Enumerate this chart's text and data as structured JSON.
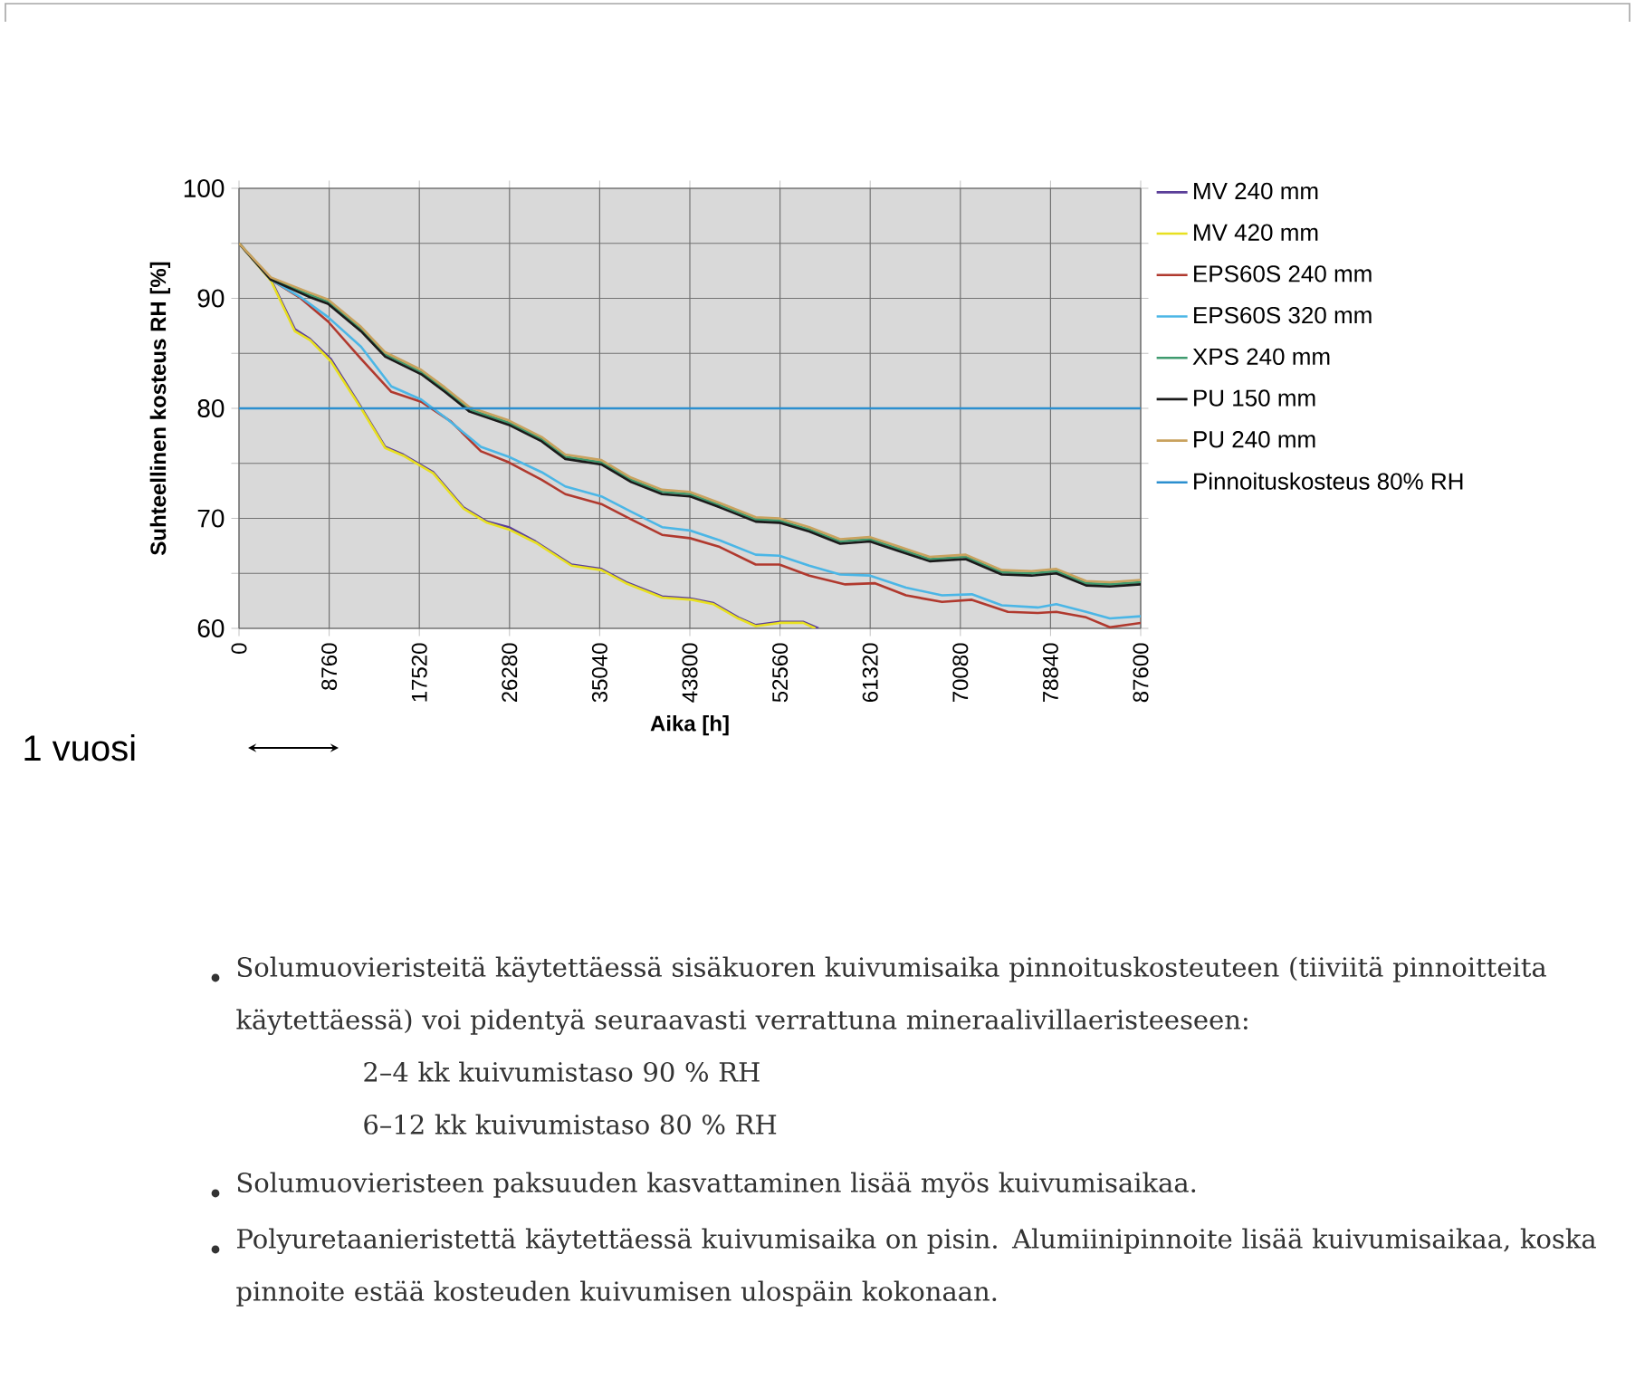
{
  "chart_data": {
    "type": "line",
    "xlabel": "Aika [h]",
    "ylabel": "Suhteellinen kosteus RH [%]",
    "xlim": [
      0,
      87600
    ],
    "ylim": [
      60,
      100
    ],
    "xticks": [
      0,
      8760,
      17520,
      26280,
      35040,
      43800,
      52560,
      61320,
      70080,
      78840,
      87600
    ],
    "yticks": [
      60,
      {
        "value": 65,
        "label": null
      },
      70,
      {
        "value": 75,
        "label": null
      },
      80,
      {
        "value": 85,
        "label": null
      },
      90,
      {
        "value": 95,
        "label": null
      },
      100
    ],
    "grid": true,
    "legend": "right",
    "line_style": "solid",
    "marker": "none",
    "series": [
      {
        "name": "MV 240 mm",
        "color": "#5b3f99",
        "x": [
          0,
          3100,
          5430,
          6900,
          8900,
          11860,
          14200,
          15950,
          18860,
          21800,
          24100,
          26200,
          28800,
          32300,
          35200,
          37600,
          41100,
          44000,
          46100,
          48500,
          50200,
          52550,
          54800,
          56300
        ],
        "values": [
          95,
          91.7,
          87.2,
          86.3,
          84.5,
          80.1,
          76.5,
          75.8,
          74.2,
          71.0,
          69.7,
          69.2,
          67.9,
          65.8,
          65.4,
          64.2,
          62.9,
          62.7,
          62.3,
          61.0,
          60.3,
          60.6,
          60.6,
          60
        ]
      },
      {
        "name": "MV 420 mm",
        "color": "#e8e020",
        "x": [
          0,
          3100,
          5430,
          6900,
          8900,
          11860,
          14200,
          15950,
          18860,
          21800,
          24100,
          26200,
          28800,
          32300,
          35200,
          37600,
          41100,
          44000,
          46100,
          48500,
          50200,
          52550,
          54800,
          56000
        ],
        "values": [
          95,
          91.6,
          87.0,
          86.2,
          84.3,
          80.0,
          76.4,
          75.7,
          74.1,
          70.9,
          69.6,
          69.0,
          67.8,
          65.7,
          65.3,
          64.1,
          62.8,
          62.6,
          62.2,
          60.9,
          60.2,
          60.5,
          60.5,
          60
        ]
      },
      {
        "name": "EPS60S 240 mm",
        "color": "#b0392e",
        "x": [
          0,
          3100,
          6000,
          8640,
          11860,
          14800,
          17700,
          20600,
          23500,
          26200,
          29400,
          31700,
          35200,
          38100,
          41100,
          43800,
          46700,
          50200,
          52500,
          55400,
          58900,
          61800,
          64800,
          68300,
          71200,
          74700,
          77600,
          79400,
          82300,
          84600,
          87600
        ],
        "values": [
          95,
          91.7,
          90.0,
          87.9,
          84.5,
          81.5,
          80.6,
          78.8,
          76.1,
          75.1,
          73.5,
          72.2,
          71.3,
          69.9,
          68.5,
          68.2,
          67.4,
          65.8,
          65.8,
          64.8,
          64.0,
          64.1,
          63.0,
          62.4,
          62.6,
          61.5,
          61.4,
          61.5,
          61.0,
          60.1,
          60.5
        ]
      },
      {
        "name": "EPS60S 320 mm",
        "color": "#4bb6e6",
        "x": [
          0,
          3100,
          6000,
          8640,
          11860,
          14800,
          17700,
          20000,
          23500,
          26200,
          29400,
          31700,
          35200,
          38100,
          41100,
          43800,
          46700,
          50200,
          52500,
          55400,
          58400,
          61300,
          64800,
          68300,
          71200,
          74100,
          77600,
          79400,
          82300,
          84600,
          87600
        ],
        "values": [
          95,
          91.7,
          90.1,
          88.3,
          85.6,
          82.0,
          80.8,
          79.2,
          76.5,
          75.6,
          74.2,
          72.9,
          72.0,
          70.6,
          69.2,
          68.9,
          68.0,
          66.7,
          66.6,
          65.7,
          64.9,
          64.8,
          63.7,
          63.0,
          63.1,
          62.1,
          61.9,
          62.2,
          61.5,
          60.9,
          61.1
        ]
      },
      {
        "name": "XPS 240 mm",
        "color": "#3f9a6e",
        "x": [
          0,
          3100,
          6900,
          8640,
          11860,
          14200,
          17700,
          20000,
          22400,
          26200,
          29400,
          31700,
          35200,
          38100,
          41100,
          43800,
          46700,
          50200,
          52500,
          55400,
          58400,
          61300,
          64200,
          67100,
          70600,
          74100,
          77000,
          79400,
          82300,
          84600,
          87600
        ],
        "values": [
          95,
          91.8,
          90.3,
          89.7,
          87.2,
          84.9,
          83.3,
          81.7,
          79.9,
          78.7,
          77.2,
          75.6,
          75.1,
          73.5,
          72.4,
          72.2,
          71.2,
          69.9,
          69.8,
          69.0,
          67.9,
          68.1,
          67.2,
          66.3,
          66.5,
          65.1,
          65.0,
          65.2,
          64.1,
          64.0,
          64.2
        ]
      },
      {
        "name": "PU 150 mm",
        "color": "#1a1a1a",
        "x": [
          0,
          3100,
          6900,
          8640,
          11860,
          14200,
          17700,
          20000,
          22400,
          26200,
          29400,
          31700,
          35200,
          38100,
          41100,
          43800,
          46700,
          50200,
          52500,
          55400,
          58400,
          61300,
          64200,
          67100,
          70600,
          74100,
          77000,
          79400,
          82300,
          84600,
          87600
        ],
        "values": [
          95,
          91.7,
          90.1,
          89.5,
          87.0,
          84.7,
          83.1,
          81.5,
          79.7,
          78.5,
          77.0,
          75.4,
          74.9,
          73.3,
          72.2,
          72.0,
          71.0,
          69.7,
          69.6,
          68.8,
          67.7,
          67.9,
          67.0,
          66.1,
          66.3,
          64.9,
          64.8,
          65.0,
          63.9,
          63.8,
          64.0
        ]
      },
      {
        "name": "PU 240 mm",
        "color": "#c9a25e",
        "x": [
          0,
          3100,
          6900,
          8640,
          11860,
          14200,
          17700,
          20000,
          22400,
          26200,
          29400,
          31700,
          35200,
          38100,
          41100,
          43800,
          46700,
          50200,
          52500,
          55400,
          58400,
          61300,
          64200,
          67100,
          70600,
          74100,
          77000,
          79400,
          82300,
          84600,
          87600
        ],
        "values": [
          95,
          91.9,
          90.5,
          89.9,
          87.4,
          85.1,
          83.5,
          81.9,
          80.1,
          78.9,
          77.4,
          75.8,
          75.3,
          73.7,
          72.6,
          72.4,
          71.4,
          70.1,
          70.0,
          69.2,
          68.1,
          68.3,
          67.4,
          66.5,
          66.7,
          65.3,
          65.2,
          65.4,
          64.3,
          64.2,
          64.4
        ]
      },
      {
        "name": "Pinnoituskosteus 80% RH",
        "color": "#2b8fcf",
        "x": [
          0,
          87600
        ],
        "values": [
          80,
          80
        ]
      }
    ],
    "annotations": [
      "1 vuosi",
      "Solumuovieristeitä käytettäessä sisäkuoren kuivumisaika pinnoituskosteuteen (tiiviitä pinnoitteita käytettäessä) voi pidentyä seuraavasti verrattuna mineraalivillaeristeeseen:",
      "2–4 kk kuivumistaso 90 % RH",
      "6–12 kk kuivumistaso 80 % RH",
      "Solumuovieristeen paksuuden kasvattaminen lisää myös kuivumisaikaa.",
      "Polyuretaanieristettä käytettäessä kuivumisaika on pisin. Alumiinipinnoite lisää kuivumisaikaa, koska pinnoite estää kosteuden kuivumisen ulospäin kokonaan."
    ]
  }
}
